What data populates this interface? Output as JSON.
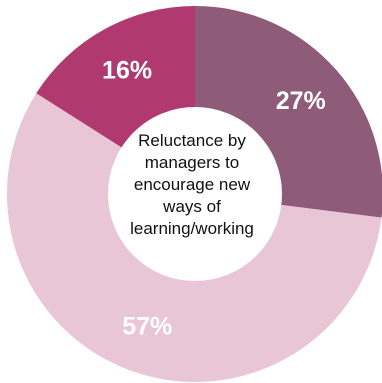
{
  "chart_data": {
    "type": "pie",
    "donut": true,
    "center_label": "Reluctance by managers to encourage new ways of learning/working",
    "slices": [
      {
        "label": "27%",
        "value": 27,
        "color": "#8e5b79"
      },
      {
        "label": "57%",
        "value": 57,
        "color": "#e9c6d6"
      },
      {
        "label": "16%",
        "value": 16,
        "color": "#b0396f"
      }
    ]
  }
}
